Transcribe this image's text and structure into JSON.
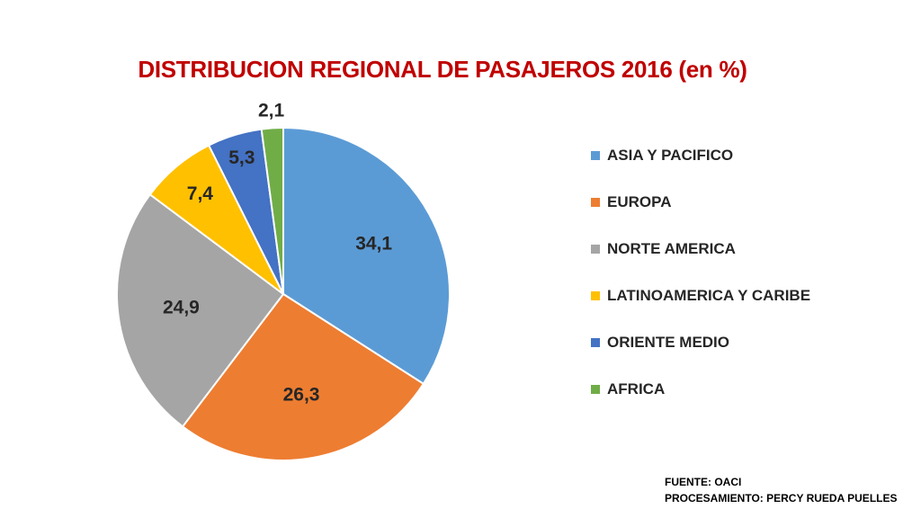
{
  "chart_data": {
    "type": "pie",
    "title": "DISTRIBUCION REGIONAL DE PASAJEROS 2016 (en %)",
    "categories": [
      "ASIA Y PACIFICO",
      "EUROPA",
      "NORTE AMERICA",
      "LATINOAMERICA Y CARIBE",
      "ORIENTE MEDIO",
      "AFRICA"
    ],
    "values": [
      34.1,
      26.3,
      24.9,
      7.4,
      5.3,
      2.1
    ],
    "value_labels": [
      "34,1",
      "26,3",
      "24,9",
      "7,4",
      "5,3",
      "2,1"
    ],
    "colors": [
      "#5b9bd5",
      "#ed7d31",
      "#a5a5a5",
      "#ffc000",
      "#4472c4",
      "#70ad47"
    ],
    "legend_position": "right",
    "start_angle": "top, clockwise"
  },
  "footer": {
    "source": "FUENTE: OACI",
    "processing": "PROCESAMIENTO: PERCY RUEDA PUELLES"
  }
}
